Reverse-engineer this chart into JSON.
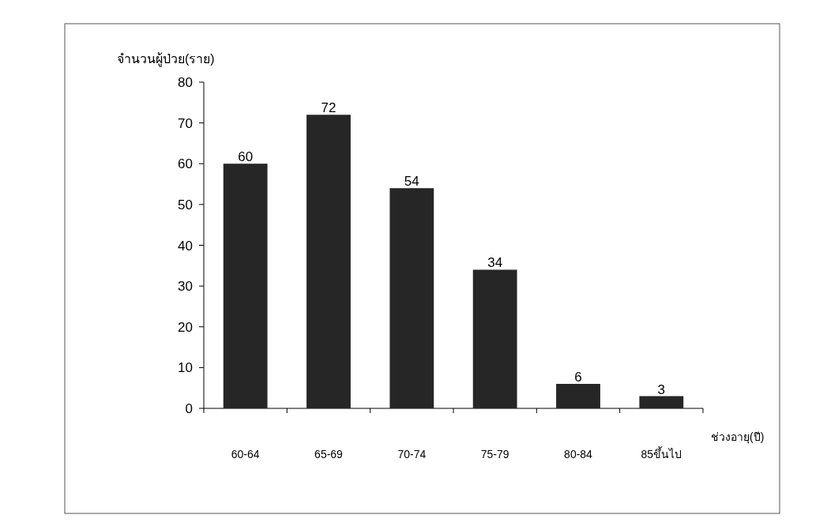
{
  "chart_data": {
    "type": "bar",
    "ylabel": "จำนวนผู้ป่วย(ราย)",
    "xlabel": "ช่วงอายุ(ปี)",
    "categories": [
      "60-64",
      "65-69",
      "70-74",
      "75-79",
      "80-84",
      "85ขึ้นไป"
    ],
    "values": [
      60,
      72,
      54,
      34,
      6,
      3
    ],
    "color": "#262626",
    "ylim": [
      0,
      80
    ],
    "yticks": [
      0,
      10,
      20,
      30,
      40,
      50,
      60,
      70,
      80
    ],
    "data_labels": true
  }
}
